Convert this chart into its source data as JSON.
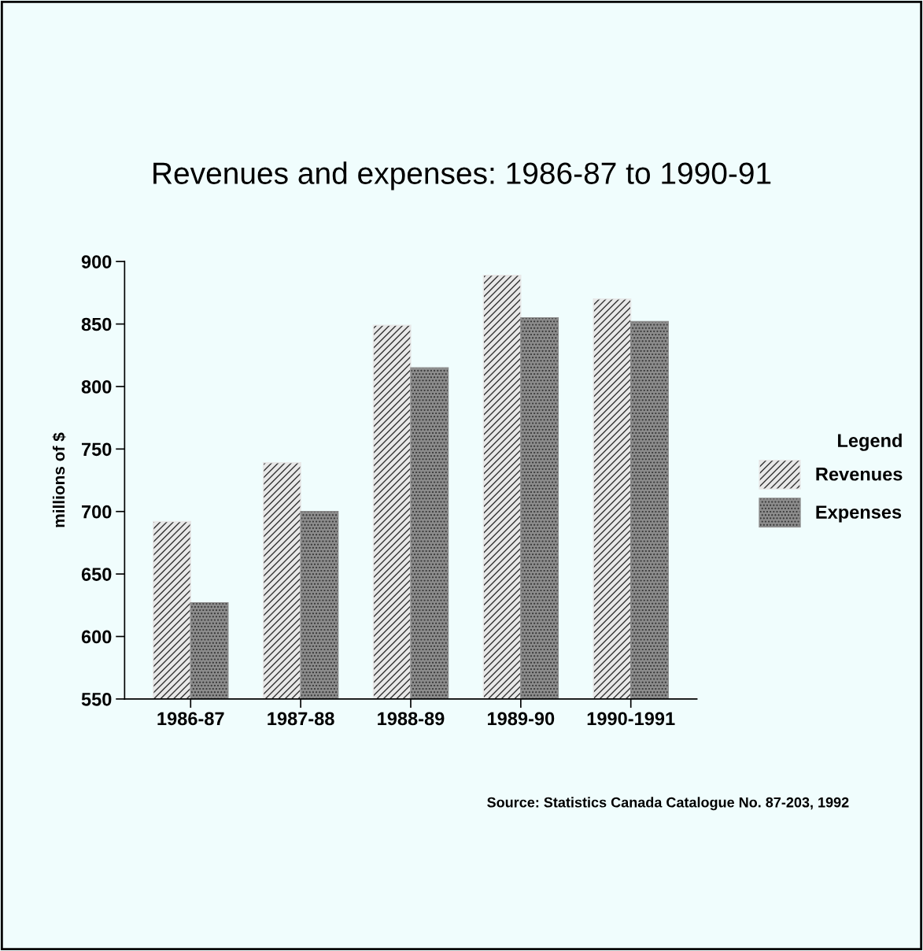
{
  "chart_data": {
    "type": "bar",
    "title": "Revenues and expenses: 1986-87 to 1990-91",
    "ylabel": "millions of $",
    "categories": [
      "1986-87",
      "1987-88",
      "1988-89",
      "1989-90",
      "1990-1991"
    ],
    "series": [
      {
        "name": "Revenues",
        "color": "#e8e8e8",
        "values": [
          692,
          739,
          849,
          889,
          870
        ]
      },
      {
        "name": "Expenses",
        "color": "#8c8c8c",
        "values": [
          627,
          700,
          815,
          855,
          852
        ]
      }
    ],
    "ylim": [
      550,
      900
    ],
    "yticks": [
      550,
      600,
      650,
      700,
      750,
      800,
      850,
      900
    ],
    "legend": "right",
    "legend_title": "Legend",
    "grid": false,
    "annotations": [
      "Source: Statistics Canada Catalogue No. 87-203, 1992"
    ]
  }
}
